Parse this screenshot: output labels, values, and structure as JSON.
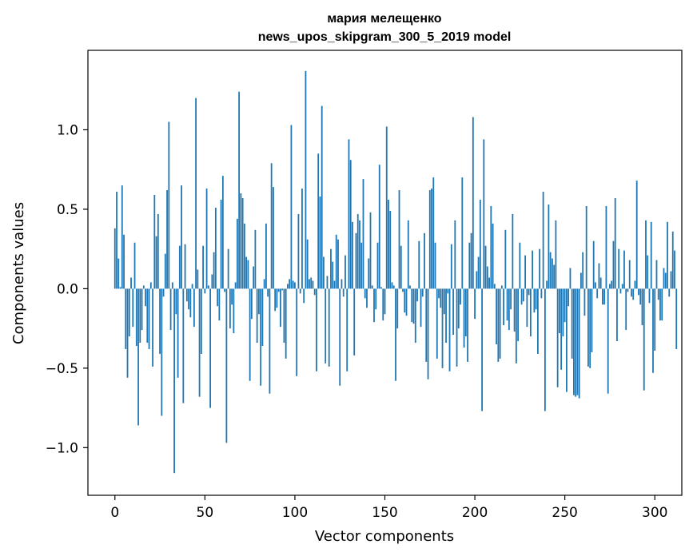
{
  "chart_data": {
    "type": "bar",
    "title_line1": "мария мелещенко",
    "title_line2": "news_upos_skipgram_300_5_2019 model",
    "xlabel": "Vector components",
    "ylabel": "Components values",
    "xlim": [
      -15,
      315
    ],
    "ylim": [
      -1.3,
      1.5
    ],
    "x_ticks": [
      0,
      50,
      100,
      150,
      200,
      250,
      300
    ],
    "x_tick_labels": [
      "0",
      "50",
      "100",
      "150",
      "200",
      "250",
      "300"
    ],
    "y_ticks": [
      -1.0,
      -0.5,
      0.0,
      0.5,
      1.0
    ],
    "y_tick_labels": [
      "−1.0",
      "−0.5",
      "0.0",
      "0.5",
      "1.0"
    ],
    "bar_color": "#1f77b4",
    "grid": false,
    "values": [
      0.38,
      0.61,
      0.19,
      0.01,
      0.65,
      0.34,
      -0.38,
      -0.56,
      -0.3,
      0.07,
      -0.24,
      0.29,
      -0.36,
      -0.86,
      -0.34,
      -0.26,
      0.02,
      -0.11,
      -0.34,
      -0.38,
      0.04,
      -0.49,
      0.59,
      0.33,
      0.47,
      -0.41,
      -0.8,
      -0.05,
      0.22,
      0.62,
      1.05,
      -0.26,
      0.04,
      -1.16,
      -0.16,
      -0.56,
      0.27,
      0.65,
      -0.72,
      0.28,
      -0.08,
      -0.13,
      -0.18,
      0.03,
      -0.24,
      1.2,
      0.12,
      -0.68,
      -0.41,
      0.27,
      -0.03,
      0.63,
      0.02,
      -0.75,
      0.09,
      0.23,
      0.51,
      -0.11,
      -0.2,
      0.56,
      0.71,
      -0.02,
      -0.97,
      0.25,
      -0.25,
      -0.1,
      -0.28,
      0.04,
      0.44,
      1.24,
      0.6,
      0.57,
      0.41,
      0.2,
      0.18,
      -0.58,
      -0.19,
      0.14,
      0.37,
      -0.34,
      -0.16,
      -0.61,
      -0.36,
      0.06,
      0.41,
      -0.05,
      -0.66,
      0.79,
      0.64,
      -0.14,
      -0.12,
      -0.02,
      -0.24,
      -0.01,
      -0.34,
      -0.44,
      0.03,
      0.06,
      1.03,
      0.05,
      0.04,
      -0.55,
      0.47,
      -0.03,
      0.63,
      -0.09,
      1.37,
      0.31,
      0.06,
      0.07,
      0.05,
      -0.04,
      -0.52,
      0.85,
      0.58,
      1.15,
      0.2,
      -0.47,
      0.08,
      -0.49,
      0.25,
      0.17,
      0.05,
      0.34,
      0.31,
      -0.61,
      0.06,
      -0.05,
      0.21,
      -0.52,
      0.94,
      0.81,
      0.42,
      -0.42,
      0.35,
      0.47,
      0.43,
      0.29,
      0.69,
      -0.06,
      -0.12,
      0.19,
      0.48,
      0.02,
      -0.21,
      -0.13,
      0.29,
      0.78,
      0.01,
      -0.2,
      -0.16,
      1.02,
      0.56,
      0.49,
      0.04,
      0.02,
      -0.58,
      -0.25,
      0.62,
      0.27,
      -0.02,
      -0.15,
      -0.17,
      0.43,
      0.02,
      -0.21,
      -0.22,
      -0.34,
      -0.08,
      0.3,
      -0.24,
      -0.05,
      0.35,
      -0.46,
      -0.57,
      0.62,
      0.63,
      0.7,
      0.29,
      -0.44,
      -0.06,
      -0.12,
      -0.5,
      -0.16,
      -0.34,
      -0.03,
      -0.52,
      0.28,
      -0.29,
      0.43,
      -0.49,
      -0.25,
      -0.1,
      0.7,
      -0.37,
      -0.3,
      -0.46,
      0.29,
      0.35,
      1.08,
      -0.19,
      0.11,
      0.2,
      0.56,
      -0.77,
      0.94,
      0.27,
      0.14,
      0.07,
      0.52,
      0.41,
      0.03,
      -0.35,
      -0.46,
      -0.44,
      0.02,
      -0.23,
      0.37,
      -0.2,
      -0.26,
      -0.13,
      0.47,
      -0.27,
      -0.47,
      -0.33,
      0.29,
      -0.1,
      -0.08,
      0.21,
      -0.24,
      -0.04,
      -0.3,
      0.24,
      -0.15,
      -0.13,
      -0.41,
      0.25,
      -0.06,
      0.61,
      -0.77,
      0.05,
      0.53,
      0.23,
      0.19,
      0.15,
      0.43,
      -0.62,
      -0.28,
      -0.51,
      -0.3,
      -0.21,
      -0.65,
      -0.11,
      0.13,
      -0.44,
      -0.67,
      -0.68,
      -0.67,
      -0.69,
      0.1,
      0.23,
      -0.17,
      0.52,
      -0.49,
      -0.5,
      -0.4,
      0.3,
      0.04,
      -0.06,
      0.16,
      0.07,
      -0.1,
      -0.1,
      0.52,
      -0.66,
      0.03,
      0.05,
      0.3,
      0.57,
      -0.33,
      0.25,
      -0.03,
      0.03,
      0.24,
      -0.26,
      -0.02,
      0.18,
      -0.05,
      -0.07,
      0.05,
      0.68,
      -0.04,
      -0.1,
      -0.23,
      -0.64,
      0.43,
      0.21,
      -0.09,
      0.42,
      -0.53,
      -0.39,
      0.18,
      -0.07,
      -0.2,
      -0.2,
      0.13,
      0.1,
      0.42,
      -0.05,
      0.11,
      0.36,
      0.24,
      -0.38
    ]
  }
}
